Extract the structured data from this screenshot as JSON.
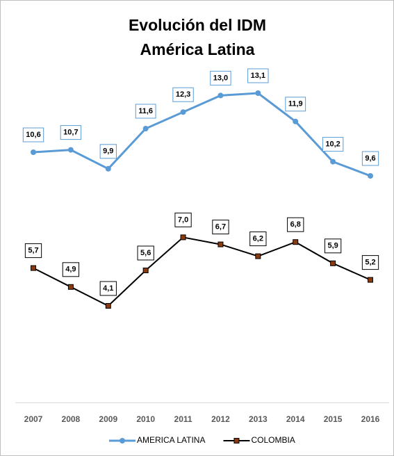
{
  "chart_data": {
    "type": "line",
    "title": "Evolución del IDM",
    "subtitle": "América Latina",
    "categories": [
      "2007",
      "2008",
      "2009",
      "2010",
      "2011",
      "2012",
      "2013",
      "2014",
      "2015",
      "2016"
    ],
    "series": [
      {
        "name": "AMERICA LATINA",
        "color": "#5b9bd5",
        "marker": "circle",
        "values": [
          10.6,
          10.7,
          9.9,
          11.6,
          12.3,
          13.0,
          13.1,
          11.9,
          10.2,
          9.6
        ],
        "value_labels": [
          "10,6",
          "10,7",
          "9,9",
          "11,6",
          "12,3",
          "13,0",
          "13,1",
          "11,9",
          "10,2",
          "9,6"
        ]
      },
      {
        "name": "COLOMBIA",
        "color": "#000000",
        "marker": "square",
        "marker_color": "#8b3a0e",
        "values": [
          5.7,
          4.9,
          4.1,
          5.6,
          7.0,
          6.7,
          6.2,
          6.8,
          5.9,
          5.2
        ],
        "value_labels": [
          "5,7",
          "4,9",
          "4,1",
          "5,6",
          "7,0",
          "6,7",
          "6,2",
          "6,8",
          "5,9",
          "5,2"
        ]
      }
    ],
    "ylim": [
      0,
      14
    ],
    "legend": "bottom"
  }
}
